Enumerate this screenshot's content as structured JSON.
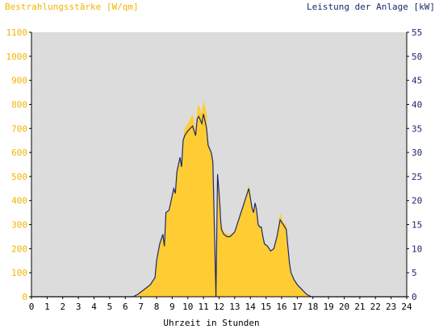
{
  "chart_data": {
    "type": "area",
    "title_left": "Bestrahlungsstärke [W/qm]",
    "title_right": "Leistung der Anlage [kW]",
    "xlabel": "Uhrzeit in Stunden",
    "xlim": [
      0,
      24
    ],
    "xticks": [
      "0",
      "1",
      "2",
      "3",
      "4",
      "5",
      "6",
      "7",
      "8",
      "9",
      "10",
      "11",
      "12",
      "13",
      "14",
      "15",
      "16",
      "17",
      "18",
      "19",
      "20",
      "21",
      "22",
      "23",
      "24"
    ],
    "y_left": {
      "ylim": [
        0,
        1100
      ],
      "ticks": [
        "0",
        "100",
        "200",
        "300",
        "400",
        "500",
        "600",
        "700",
        "800",
        "900",
        "1000",
        "1100"
      ]
    },
    "y_right": {
      "ylim": [
        0,
        55
      ],
      "ticks": [
        "0",
        "5",
        "10",
        "15",
        "20",
        "25",
        "30",
        "35",
        "40",
        "45",
        "50",
        "55"
      ]
    },
    "colors": {
      "plot_background": "#dcdcdc",
      "irradiance_fill": "#ffcc33",
      "power_line": "#1a2a6c",
      "left_axis_text": "#f2b400",
      "right_axis_text": "#1a2a6c",
      "axis": "#000000"
    },
    "series": [
      {
        "name": "Bestrahlungsstärke [W/qm]",
        "axis": "left",
        "style": "area",
        "x": [
          0,
          6.5,
          6.8,
          7.2,
          7.6,
          7.9,
          8.0,
          8.2,
          8.4,
          8.5,
          8.6,
          8.8,
          8.9,
          9.1,
          9.2,
          9.3,
          9.5,
          9.6,
          9.7,
          9.8,
          10.0,
          10.3,
          10.5,
          10.6,
          10.7,
          10.9,
          11.0,
          11.1,
          11.2,
          11.3,
          11.5,
          11.6,
          11.8,
          11.9,
          12.0,
          12.05,
          12.1,
          12.15,
          12.3,
          12.5,
          12.7,
          13.0,
          13.3,
          13.6,
          13.9,
          14.0,
          14.1,
          14.2,
          14.3,
          14.4,
          14.5,
          14.6,
          14.7,
          14.8,
          14.9,
          15.1,
          15.3,
          15.5,
          15.7,
          15.9,
          16.1,
          16.3,
          16.4,
          16.5,
          16.6,
          16.8,
          17.0,
          17.3,
          17.6,
          17.9,
          18.2,
          18.5,
          24
        ],
        "y": [
          0,
          0,
          10,
          30,
          55,
          80,
          150,
          220,
          260,
          210,
          350,
          360,
          390,
          450,
          430,
          520,
          580,
          540,
          660,
          700,
          720,
          760,
          690,
          780,
          800,
          760,
          820,
          790,
          760,
          630,
          600,
          560,
          0,
          510,
          430,
          380,
          320,
          300,
          270,
          260,
          260,
          270,
          330,
          390,
          470,
          420,
          380,
          350,
          390,
          360,
          300,
          290,
          290,
          250,
          220,
          210,
          190,
          200,
          250,
          350,
          310,
          300,
          210,
          140,
          100,
          70,
          55,
          30,
          10,
          0,
          0,
          0,
          0
        ]
      },
      {
        "name": "Leistung der Anlage [kW]",
        "axis": "right",
        "style": "line",
        "x": [
          0,
          6.5,
          6.8,
          7.2,
          7.6,
          7.9,
          8.0,
          8.2,
          8.4,
          8.5,
          8.6,
          8.8,
          8.9,
          9.1,
          9.2,
          9.3,
          9.5,
          9.6,
          9.7,
          9.8,
          10.0,
          10.3,
          10.5,
          10.6,
          10.7,
          10.9,
          11.0,
          11.1,
          11.2,
          11.3,
          11.5,
          11.6,
          11.8,
          11.9,
          12.0,
          12.05,
          12.1,
          12.15,
          12.3,
          12.5,
          12.7,
          13.0,
          13.3,
          13.6,
          13.9,
          14.0,
          14.1,
          14.2,
          14.3,
          14.4,
          14.5,
          14.6,
          14.7,
          14.8,
          14.9,
          15.1,
          15.3,
          15.5,
          15.7,
          15.9,
          16.1,
          16.3,
          16.4,
          16.5,
          16.6,
          16.8,
          17.0,
          17.3,
          17.6,
          17.9,
          18.2,
          18.5,
          24
        ],
        "y": [
          0,
          0,
          0.5,
          1.5,
          2.5,
          4,
          7.5,
          11,
          13,
          10.5,
          17.5,
          18,
          19.5,
          22.5,
          21.5,
          26,
          29,
          27,
          32.5,
          33.5,
          34.5,
          35.5,
          33.5,
          37,
          37.5,
          36,
          38,
          36.5,
          35,
          31.5,
          30,
          28,
          0,
          25.5,
          21.5,
          19,
          16,
          14,
          13,
          12.5,
          12.5,
          13.5,
          16.5,
          19.5,
          22.5,
          20.5,
          18.5,
          17.5,
          19.5,
          18,
          15,
          14.5,
          14.5,
          12.5,
          11,
          10.5,
          9.5,
          10,
          12.5,
          16,
          15,
          14,
          10.5,
          7,
          5,
          3.5,
          2.5,
          1.5,
          0.5,
          0,
          0,
          0,
          0
        ]
      }
    ]
  }
}
